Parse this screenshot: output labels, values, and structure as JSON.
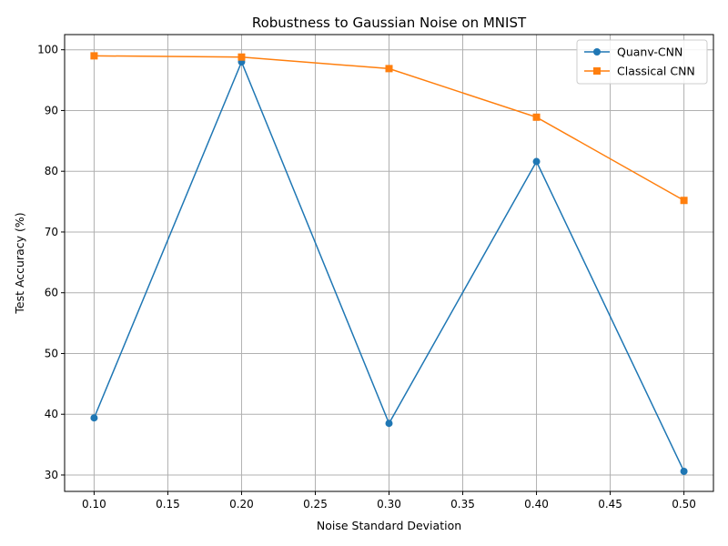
{
  "chart_data": {
    "type": "line",
    "title": "Robustness to Gaussian Noise on MNIST",
    "xlabel": "Noise Standard Deviation",
    "ylabel": "Test Accuracy (%)",
    "x": [
      0.1,
      0.2,
      0.3,
      0.4,
      0.5
    ],
    "xlim": [
      0.08,
      0.52
    ],
    "ylim": [
      27.3,
      102.5
    ],
    "xticks": [
      0.1,
      0.15,
      0.2,
      0.25,
      0.3,
      0.35,
      0.4,
      0.45,
      0.5
    ],
    "xtick_labels": [
      "0.10",
      "0.15",
      "0.20",
      "0.25",
      "0.30",
      "0.35",
      "0.40",
      "0.45",
      "0.50"
    ],
    "yticks": [
      30,
      40,
      50,
      60,
      70,
      80,
      90,
      100
    ],
    "ytick_labels": [
      "30",
      "40",
      "50",
      "60",
      "70",
      "80",
      "90",
      "100"
    ],
    "grid": true,
    "legend_position": "upper-right",
    "series": [
      {
        "name": "Quanv-CNN",
        "values": [
          39.4,
          98.0,
          38.5,
          81.6,
          30.6
        ],
        "color": "#1f77b4",
        "marker": "circle"
      },
      {
        "name": "Classical CNN",
        "values": [
          99.0,
          98.8,
          96.9,
          88.9,
          75.2
        ],
        "color": "#ff7f0e",
        "marker": "square"
      }
    ]
  }
}
